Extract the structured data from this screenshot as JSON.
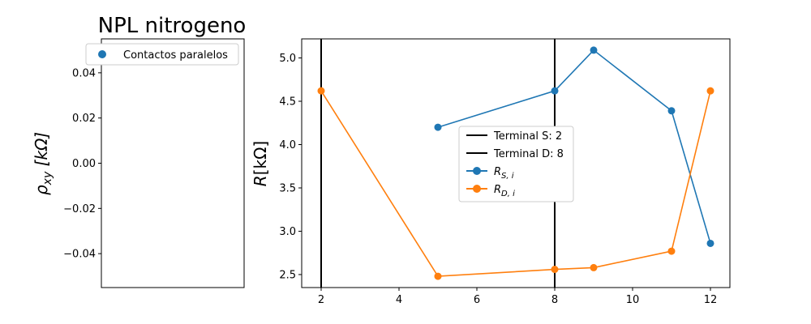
{
  "chart_data": [
    {
      "type": "scatter",
      "title": "NPL nitrogeno",
      "ylabel": "ρxy [kΩ]",
      "ylabel_parts": {
        "main": "ρ",
        "sub": "xy",
        "unit": " [kΩ]"
      },
      "xlabel": "",
      "ylim": [
        -0.055,
        0.055
      ],
      "yticks": [
        "0.04",
        "0.02",
        "0.00",
        "−0.02",
        "−0.04"
      ],
      "ytick_values": [
        0.04,
        0.02,
        0.0,
        -0.02,
        -0.04
      ],
      "xticks": [],
      "grid": false,
      "legend_position": "top-right",
      "series": [
        {
          "name": "Contactos paralelos",
          "color": "#1f77b4",
          "x": [],
          "y": []
        }
      ]
    },
    {
      "type": "line",
      "title": "",
      "xlabel": "",
      "ylabel": "R[kΩ]",
      "ylabel_parts": {
        "main": "R",
        "unit": "[kΩ]"
      },
      "xlim": [
        1.5,
        12.5
      ],
      "ylim": [
        2.35,
        5.22
      ],
      "xticks": [
        "2",
        "4",
        "6",
        "8",
        "10",
        "12"
      ],
      "xtick_values": [
        2,
        4,
        6,
        8,
        10,
        12
      ],
      "yticks": [
        "2.5",
        "3.0",
        "3.5",
        "4.0",
        "4.5",
        "5.0"
      ],
      "ytick_values": [
        2.5,
        3.0,
        3.5,
        4.0,
        4.5,
        5.0
      ],
      "grid": false,
      "legend_position": "center",
      "vlines": [
        {
          "name": "Terminal S: 2",
          "x": 2,
          "color": "#000000"
        },
        {
          "name": "Terminal D: 8",
          "x": 8,
          "color": "#000000"
        }
      ],
      "series": [
        {
          "name": "R_{S,i}",
          "name_parts": {
            "main": "R",
            "sub": "S, i"
          },
          "color": "#1f77b4",
          "x": [
            5,
            8,
            9,
            11,
            12
          ],
          "y": [
            4.2,
            4.62,
            5.09,
            4.39,
            2.86
          ]
        },
        {
          "name": "R_{D,i}",
          "name_parts": {
            "main": "R",
            "sub": "D, i"
          },
          "color": "#ff7f0e",
          "x": [
            2,
            5,
            8,
            9,
            11,
            12
          ],
          "y": [
            4.62,
            2.48,
            2.56,
            2.58,
            2.77,
            4.62
          ]
        }
      ]
    }
  ]
}
